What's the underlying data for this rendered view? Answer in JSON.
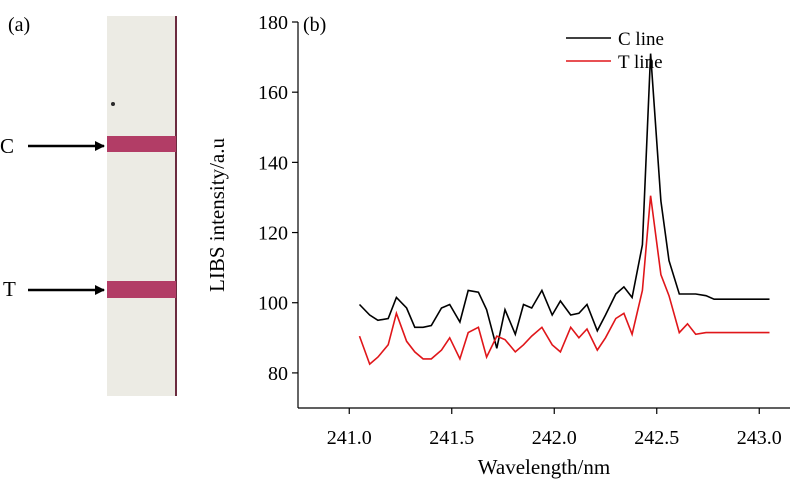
{
  "panel_a": {
    "label": "(a)",
    "c_label": "C",
    "t_label": "T",
    "strip_color": "#ecebe4",
    "band_color": "#b23d66"
  },
  "panel_b": {
    "label": "(b)"
  },
  "chart_data": {
    "type": "line",
    "xlabel": "Wavelength/nm",
    "ylabel": "LIBS intensity/a.u",
    "xlim": [
      240.75,
      243.15
    ],
    "ylim": [
      70,
      180
    ],
    "xticks": [
      241.0,
      241.5,
      242.0,
      242.5,
      243.0
    ],
    "xtick_labels": [
      "241.0",
      "241.5",
      "242.0",
      "242.5",
      "243.0"
    ],
    "yticks": [
      80,
      100,
      120,
      140,
      160,
      180
    ],
    "ytick_labels": [
      "80",
      "100",
      "120",
      "140",
      "160",
      "180"
    ],
    "legend_position": "top-right",
    "grid": false,
    "series": [
      {
        "name": "C line",
        "color": "#000000",
        "x": [
          241.05,
          241.1,
          241.14,
          241.19,
          241.23,
          241.28,
          241.32,
          241.36,
          241.4,
          241.45,
          241.49,
          241.54,
          241.58,
          241.63,
          241.67,
          241.72,
          241.76,
          241.81,
          241.85,
          241.89,
          241.94,
          241.99,
          242.03,
          242.08,
          242.12,
          242.16,
          242.21,
          242.25,
          242.3,
          242.34,
          242.38,
          242.43,
          242.47,
          242.52,
          242.56,
          242.61,
          242.65,
          242.69,
          242.74,
          242.78,
          242.83,
          242.87,
          242.92,
          242.96,
          243.0,
          243.05
        ],
        "y": [
          99.5,
          96.5,
          95.0,
          95.5,
          101.5,
          98.5,
          93.0,
          93.0,
          93.5,
          98.5,
          99.5,
          94.5,
          103.5,
          103.0,
          98.0,
          87.0,
          98.0,
          91.0,
          99.5,
          98.5,
          103.5,
          96.5,
          100.5,
          96.5,
          97.0,
          99.5,
          92.0,
          96.5,
          102.5,
          104.5,
          101.5,
          116.5,
          171.0,
          129.0,
          112.0,
          102.5,
          102.5,
          102.5,
          102.0,
          101.0,
          101.0,
          101.0,
          101.0,
          101.0,
          101.0,
          101.0
        ]
      },
      {
        "name": "T line",
        "color": "#e0161a",
        "x": [
          241.05,
          241.1,
          241.14,
          241.19,
          241.23,
          241.28,
          241.32,
          241.36,
          241.4,
          241.45,
          241.49,
          241.54,
          241.58,
          241.63,
          241.67,
          241.72,
          241.76,
          241.81,
          241.85,
          241.89,
          241.94,
          241.99,
          242.03,
          242.08,
          242.12,
          242.16,
          242.21,
          242.25,
          242.3,
          242.34,
          242.38,
          242.43,
          242.47,
          242.52,
          242.56,
          242.61,
          242.65,
          242.69,
          242.74,
          242.78,
          242.83,
          242.87,
          242.92,
          242.96,
          243.0,
          243.05
        ],
        "y": [
          90.5,
          82.5,
          84.5,
          88.0,
          97.0,
          89.0,
          86.0,
          84.0,
          84.0,
          86.5,
          90.0,
          84.0,
          91.5,
          93.0,
          84.5,
          90.5,
          89.5,
          86.0,
          88.0,
          90.5,
          93.0,
          88.0,
          86.0,
          93.0,
          90.0,
          92.5,
          86.5,
          90.0,
          95.5,
          97.0,
          91.0,
          103.5,
          130.5,
          108.0,
          102.0,
          91.5,
          94.0,
          91.0,
          91.5,
          91.5,
          91.5,
          91.5,
          91.5,
          91.5,
          91.5,
          91.5
        ]
      }
    ]
  }
}
